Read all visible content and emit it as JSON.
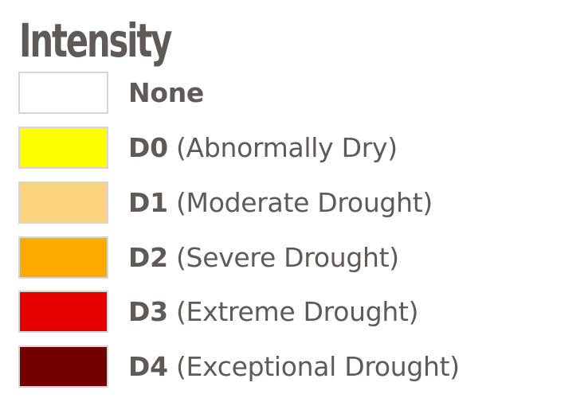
{
  "legend": {
    "title": "Intensity",
    "items": [
      {
        "code": "None",
        "description": "",
        "color": "#ffffff"
      },
      {
        "code": "D0",
        "description": "(Abnormally Dry)",
        "color": "#ffff00"
      },
      {
        "code": "D1",
        "description": "(Moderate Drought)",
        "color": "#fcd37f"
      },
      {
        "code": "D2",
        "description": "(Severe Drought)",
        "color": "#ffaa00"
      },
      {
        "code": "D3",
        "description": "(Extreme Drought)",
        "color": "#e60000"
      },
      {
        "code": "D4",
        "description": "(Exceptional Drought)",
        "color": "#730000"
      }
    ]
  }
}
